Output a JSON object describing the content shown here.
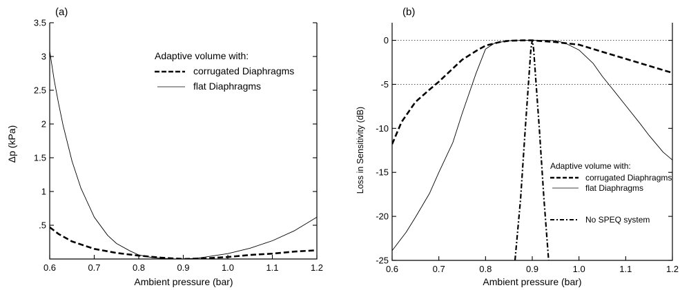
{
  "chart_data": [
    {
      "type": "line",
      "panel_label": "(a)",
      "xlabel": "Ambient pressure (bar)",
      "ylabel": "Δp (kPa)",
      "xlim": [
        0.6,
        1.2
      ],
      "ylim": [
        0,
        3.5
      ],
      "x_ticks": [
        0.6,
        0.7,
        0.8,
        0.9,
        1.0,
        1.1,
        1.2
      ],
      "x_tick_labels": [
        "0.6",
        "0.7",
        "0.8",
        "0.9",
        "1.0",
        "1.1",
        "1.2"
      ],
      "y_ticks": [
        0.5,
        1,
        1.5,
        2,
        2.5,
        3,
        3.5
      ],
      "y_tick_labels": [
        ".5",
        "1",
        "1.5",
        "2",
        "2.5",
        "3",
        "3.5"
      ],
      "grid": false,
      "legend": {
        "title": "Adaptive volume with:",
        "position": "top-right",
        "entries": [
          "corrugated Diaphragms",
          "flat Diaphragms"
        ]
      },
      "series": [
        {
          "name": "corrugated Diaphragms",
          "style": "dashed-thick",
          "x": [
            0.6,
            0.62,
            0.65,
            0.7,
            0.75,
            0.8,
            0.85,
            0.9,
            0.95,
            1.0,
            1.05,
            1.1,
            1.15,
            1.2
          ],
          "y": [
            0.47,
            0.37,
            0.26,
            0.15,
            0.09,
            0.05,
            0.02,
            0.0,
            0.01,
            0.03,
            0.06,
            0.08,
            0.11,
            0.13
          ]
        },
        {
          "name": "flat Diaphragms",
          "style": "solid-thin",
          "x": [
            0.6,
            0.61,
            0.62,
            0.63,
            0.65,
            0.67,
            0.7,
            0.73,
            0.75,
            0.78,
            0.8,
            0.83,
            0.85,
            0.88,
            0.9,
            0.93,
            0.95,
            1.0,
            1.05,
            1.1,
            1.15,
            1.2
          ],
          "y": [
            3.08,
            2.65,
            2.3,
            1.98,
            1.45,
            1.05,
            0.62,
            0.35,
            0.23,
            0.12,
            0.06,
            0.02,
            0.01,
            0.0,
            0.0,
            0.01,
            0.03,
            0.08,
            0.16,
            0.27,
            0.42,
            0.62
          ]
        }
      ]
    },
    {
      "type": "line",
      "panel_label": "(b)",
      "xlabel": "Ambient pressure (bar)",
      "ylabel": "Loss in Sensitivity (dB)",
      "xlim": [
        0.6,
        1.2
      ],
      "ylim": [
        -25,
        2
      ],
      "x_ticks": [
        0.6,
        0.7,
        0.8,
        0.9,
        1.0,
        1.1,
        1.2
      ],
      "x_tick_labels": [
        "0.6",
        "0.7",
        "0.8",
        "0.9",
        "1.0",
        "1.1",
        "1.2"
      ],
      "y_ticks": [
        0,
        -5,
        -10,
        -15,
        -20,
        -25
      ],
      "y_tick_labels": [
        "0",
        "-5",
        "-10",
        "-15",
        "-20",
        "-25"
      ],
      "reference_lines": [
        0,
        -5
      ],
      "grid": false,
      "legend": {
        "title": "Adaptive volume with:",
        "position": "lower-right",
        "entries": [
          "corrugated Diaphragms",
          "flat Diaphragms",
          "No SPEQ system"
        ]
      },
      "series": [
        {
          "name": "corrugated Diaphragms",
          "style": "dashed-thick",
          "x": [
            0.6,
            0.62,
            0.65,
            0.68,
            0.7,
            0.73,
            0.75,
            0.78,
            0.8,
            0.83,
            0.85,
            0.88,
            0.9,
            0.95,
            1.0,
            1.05,
            1.1,
            1.15,
            1.2
          ],
          "y": [
            -11.8,
            -9.3,
            -7.0,
            -5.6,
            -4.7,
            -3.2,
            -2.2,
            -1.2,
            -0.6,
            -0.2,
            -0.05,
            0.0,
            0.0,
            -0.2,
            -0.5,
            -1.3,
            -2.1,
            -2.9,
            -3.7
          ]
        },
        {
          "name": "flat Diaphragms",
          "style": "solid-thin",
          "x": [
            0.6,
            0.63,
            0.65,
            0.68,
            0.7,
            0.73,
            0.75,
            0.78,
            0.8,
            0.82,
            0.85,
            0.88,
            0.9,
            0.93,
            0.95,
            0.97,
            1.0,
            1.03,
            1.05,
            1.07,
            1.1,
            1.13,
            1.15,
            1.18,
            1.2
          ],
          "y": [
            -23.9,
            -21.8,
            -20.1,
            -17.4,
            -15.0,
            -11.6,
            -8.3,
            -3.7,
            -1.0,
            -0.3,
            -0.05,
            0.0,
            0.0,
            0.0,
            -0.05,
            -0.3,
            -1.1,
            -2.6,
            -4.1,
            -5.4,
            -7.4,
            -9.4,
            -10.8,
            -12.7,
            -13.6
          ]
        },
        {
          "name": "No SPEQ system",
          "style": "dash-dot",
          "x": [
            0.863,
            0.875,
            0.885,
            0.893,
            0.897,
            0.9,
            0.903,
            0.907,
            0.915,
            0.925,
            0.935
          ],
          "y": [
            -25,
            -18.0,
            -10.0,
            -4.0,
            -1.0,
            0.0,
            -1.0,
            -4.0,
            -10.0,
            -18.0,
            -25
          ]
        }
      ]
    }
  ]
}
